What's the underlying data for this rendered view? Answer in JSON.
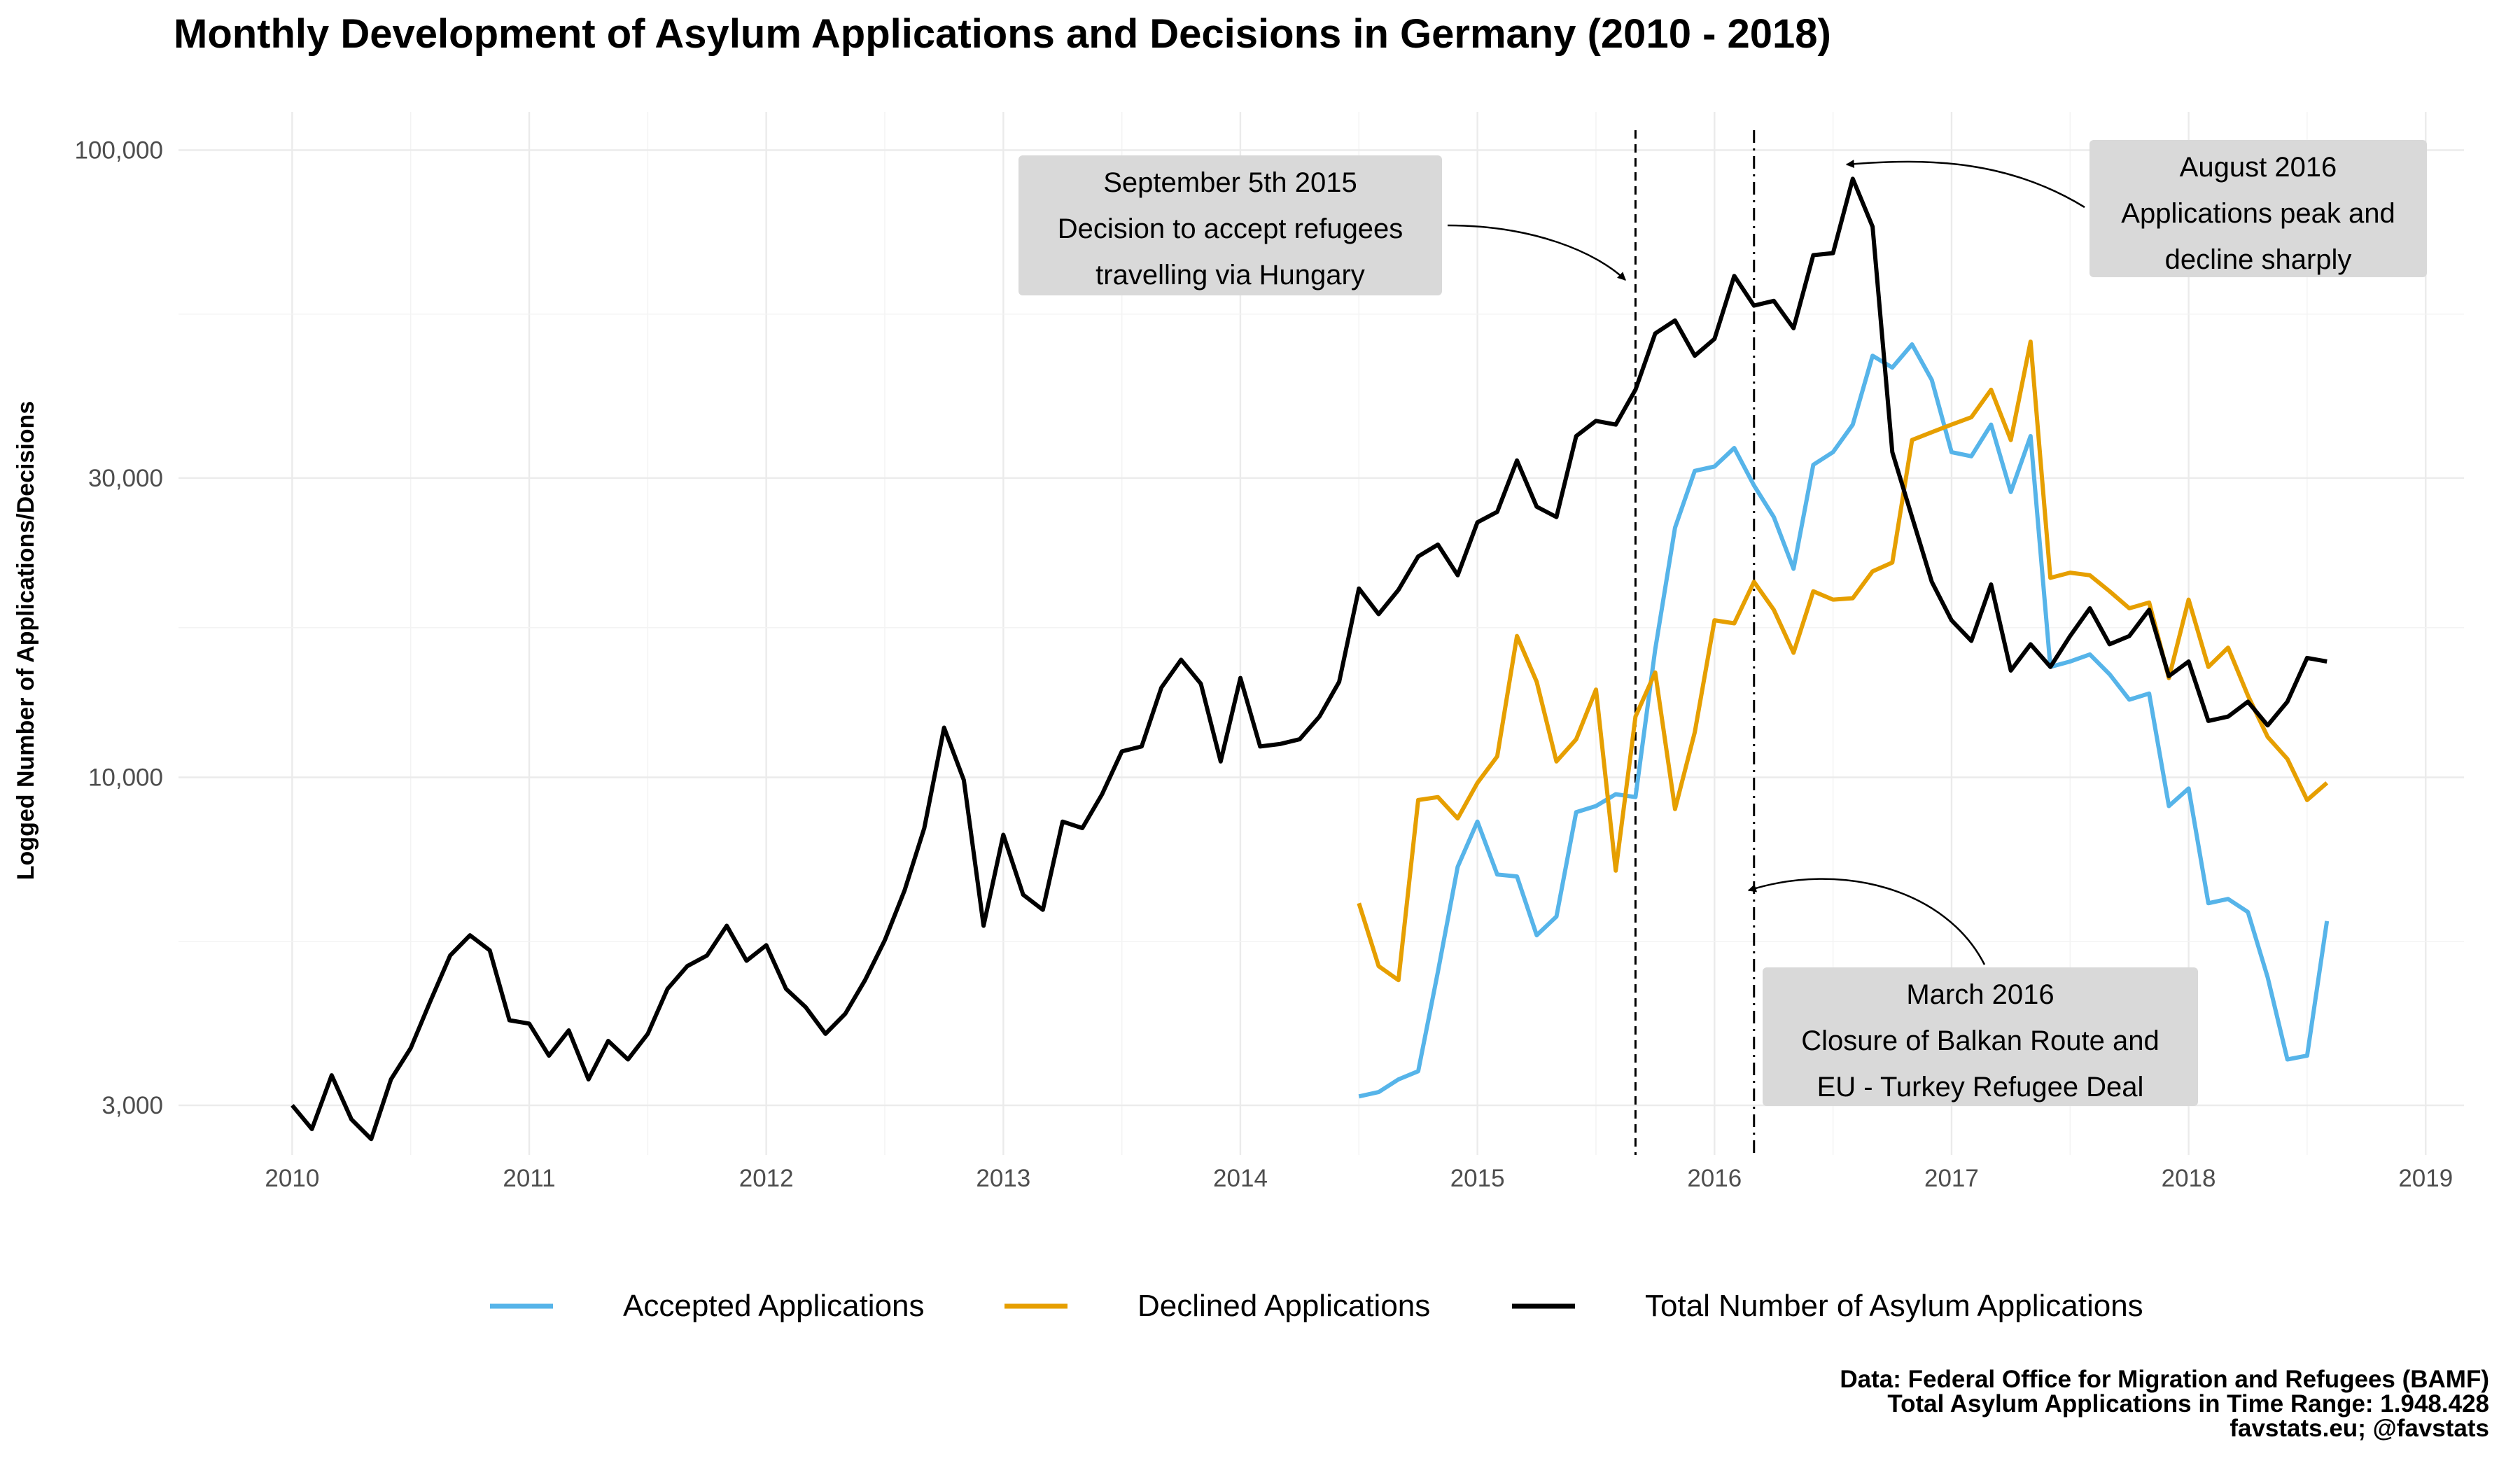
{
  "chart_data": {
    "type": "line",
    "title": "Monthly Development of Asylum Applications and Decisions in Germany (2010 - 2018)",
    "ylabel": "Logged Number of Applications/Decisions",
    "xlabel": "",
    "y_scale": "log10",
    "ylim": [
      2500,
      115000
    ],
    "xlim": [
      "2009-07-10",
      "2019-03-01"
    ],
    "grid": true,
    "legend_position": "bottom",
    "x_ticks": [
      "2010",
      "2011",
      "2012",
      "2013",
      "2014",
      "2015",
      "2016",
      "2017",
      "2018",
      "2019"
    ],
    "y_ticks": [
      3000,
      10000,
      30000,
      100000
    ],
    "y_tick_labels": [
      "3,000",
      "10,000",
      "30,000",
      "100,000"
    ],
    "series": [
      {
        "name": "Accepted Applications",
        "color": "#56B4E9",
        "start": "2014-07",
        "values": [
          3100,
          3150,
          3300,
          3400,
          4900,
          7200,
          8500,
          7000,
          6950,
          5600,
          6000,
          8800,
          9000,
          9400,
          9300,
          16000,
          25000,
          30800,
          31300,
          33500,
          29200,
          26000,
          21500,
          31500,
          33000,
          36500,
          47000,
          45000,
          49000,
          43000,
          33000,
          32500,
          36500,
          28500,
          35000,
          15000,
          15300,
          15700,
          14600,
          13300,
          13600,
          9000,
          9600,
          6300,
          6400,
          6100,
          4800,
          3550,
          3600,
          5900
        ]
      },
      {
        "name": "Declined Applications",
        "color": "#E69F00",
        "start": "2014-07",
        "values": [
          6300,
          5000,
          4750,
          9200,
          9300,
          8600,
          9800,
          10800,
          16800,
          14200,
          10600,
          11500,
          13800,
          7100,
          12500,
          14700,
          8900,
          11800,
          17800,
          17600,
          20500,
          18500,
          15800,
          19800,
          19200,
          19300,
          21300,
          22000,
          34500,
          35500,
          36500,
          37500,
          41500,
          34500,
          49500,
          20800,
          21200,
          21000,
          19800,
          18600,
          19000,
          14400,
          19200,
          15000,
          16100,
          13500,
          11600,
          10700,
          9200,
          9800
        ]
      },
      {
        "name": "Total Number of Asylum Applications",
        "color": "#000000",
        "start": "2010-01",
        "values": [
          3000,
          2750,
          3350,
          2850,
          2650,
          3300,
          3700,
          4400,
          5200,
          5600,
          5300,
          4100,
          4050,
          3600,
          3950,
          3300,
          3800,
          3550,
          3900,
          4600,
          5000,
          5200,
          5800,
          5100,
          5400,
          4600,
          4300,
          3900,
          4200,
          4750,
          5500,
          6600,
          8300,
          12000,
          9900,
          5800,
          8100,
          6500,
          6150,
          8500,
          8300,
          9400,
          11000,
          11200,
          13900,
          15400,
          14100,
          10600,
          14400,
          11200,
          11300,
          11500,
          12500,
          14200,
          20000,
          18200,
          19900,
          22500,
          23500,
          21000,
          25500,
          26500,
          32000,
          27000,
          26000,
          35000,
          37000,
          36500,
          41500,
          51000,
          53500,
          47000,
          50000,
          63000,
          56500,
          57500,
          52000,
          68000,
          68500,
          90000,
          75500,
          33000,
          26000,
          20500,
          17800,
          16500,
          20300,
          14800,
          16300,
          15000,
          16800,
          18600,
          16300,
          16800,
          18500,
          14500,
          15300,
          12300,
          12500,
          13200,
          12100,
          13200,
          15500,
          15300
        ]
      }
    ],
    "vertical_lines": [
      {
        "date": "2015-09",
        "style": "dashed"
      },
      {
        "date": "2016-03",
        "style": "dotdash"
      }
    ],
    "annotations": [
      {
        "lines": [
          "September 5th 2015",
          "Decision to accept refugees",
          "travelling via Hungary"
        ]
      },
      {
        "lines": [
          "August 2016",
          "Applications peak and",
          "decline sharply"
        ]
      },
      {
        "lines": [
          "March 2016",
          "Closure of Balkan Route and",
          "EU - Turkey Refugee Deal"
        ]
      }
    ],
    "caption": [
      "Data: Federal Office for Migration and Refugees (BAMF)",
      "Total Asylum Applications in Time Range: 1.948.428",
      "favstats.eu; @favstats"
    ]
  }
}
